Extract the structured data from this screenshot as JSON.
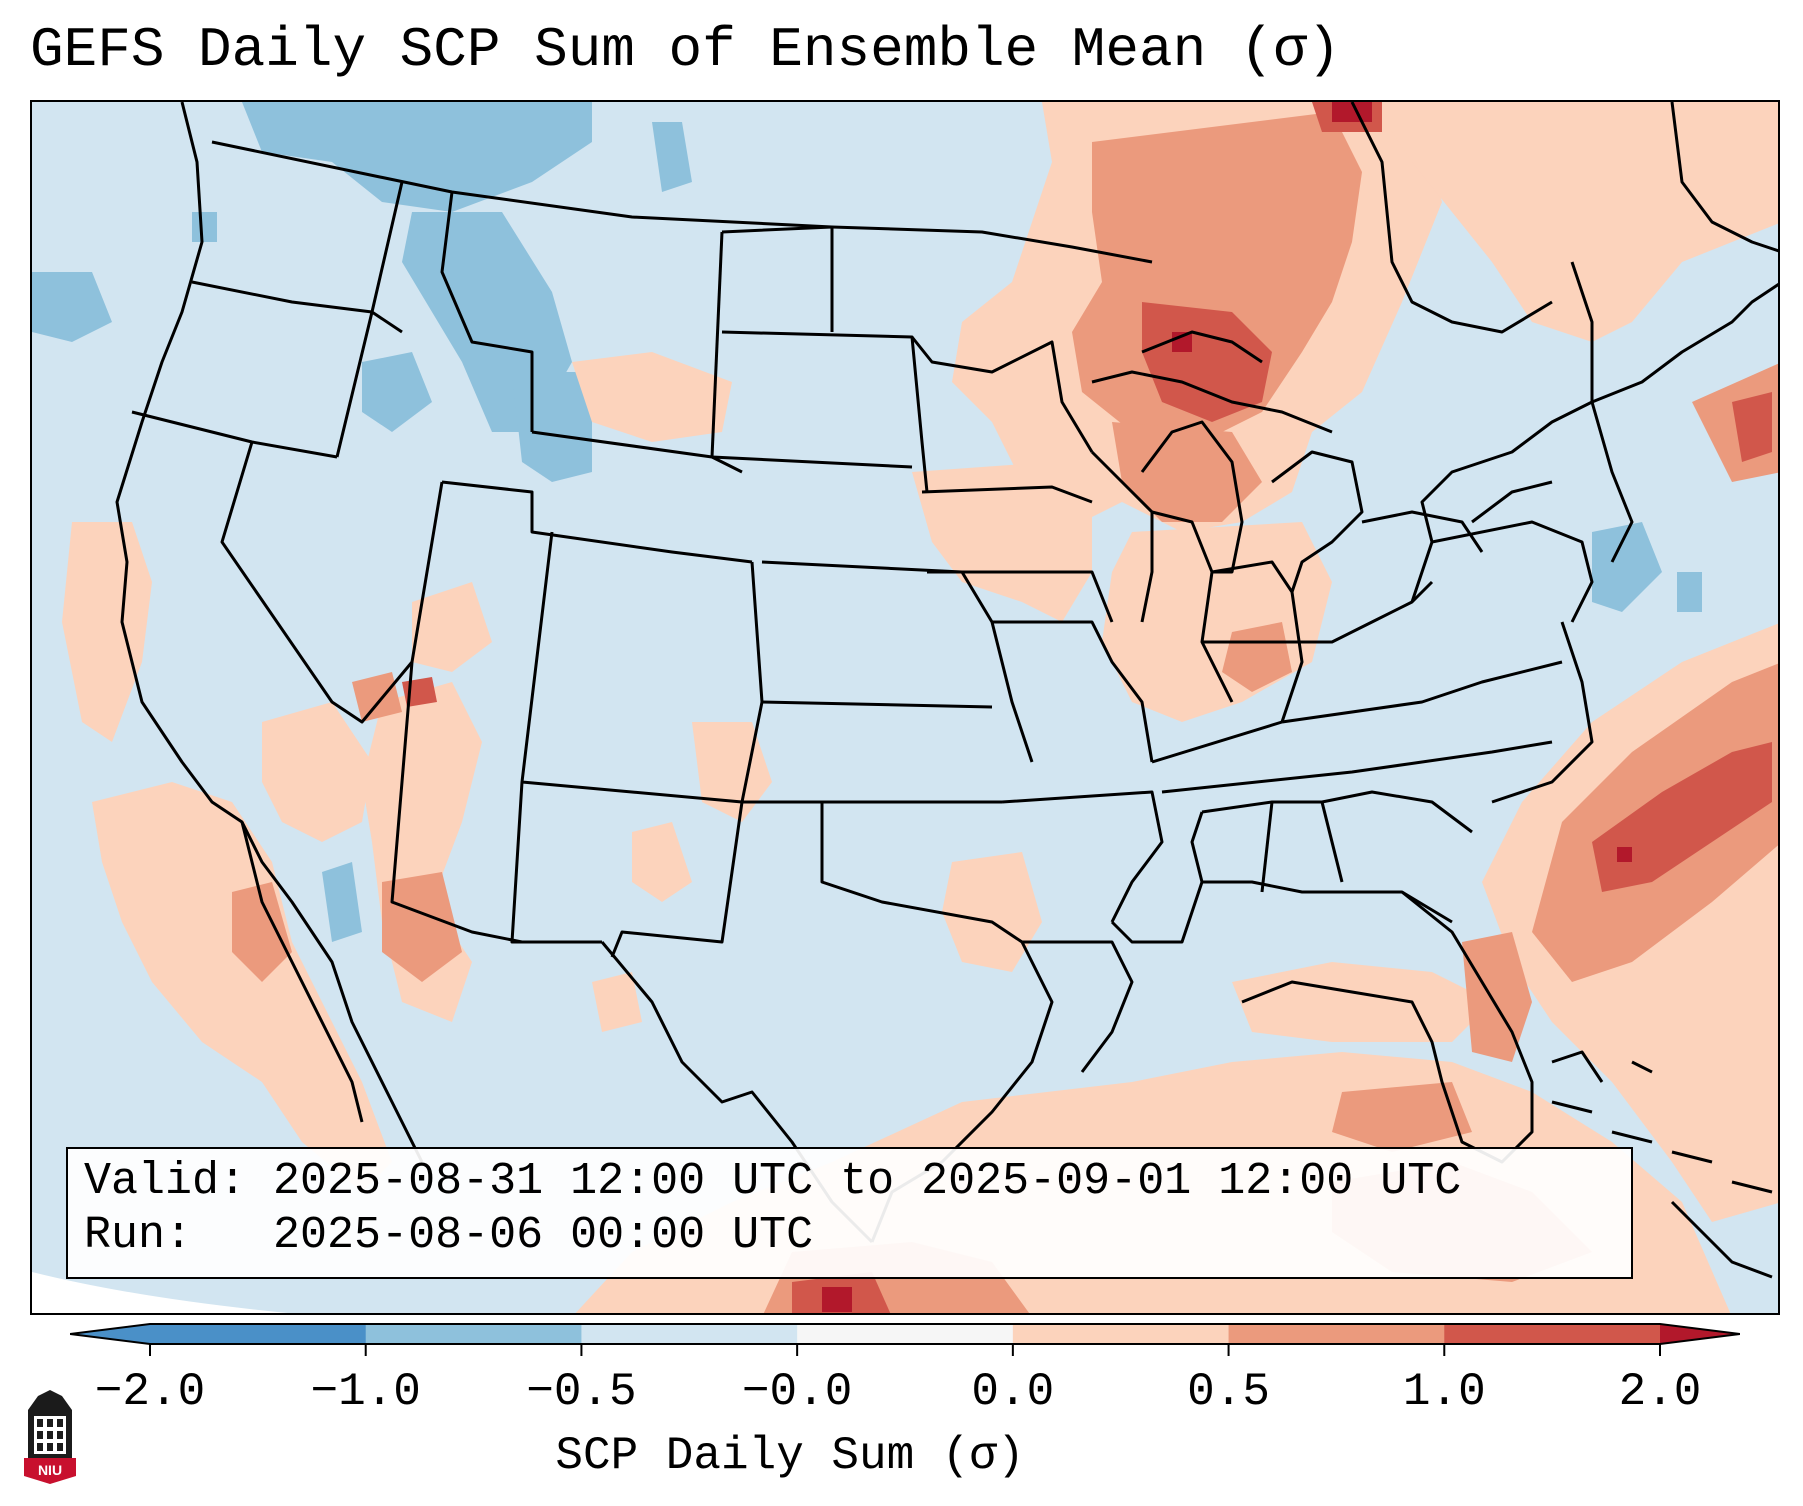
{
  "title": "GEFS Daily SCP Sum of Ensemble Mean (σ)",
  "info": {
    "valid_label": "Valid:",
    "valid_value": "2025-08-31 12:00 UTC to 2025-09-01 12:00 UTC",
    "run_label": "Run:",
    "run_value": "2025-08-06 00:00 UTC"
  },
  "colorbar": {
    "label": "SCP Daily Sum (σ)",
    "ticks": [
      "−2.0",
      "−1.0",
      "−0.5",
      "−0.0",
      "0.0",
      "0.5",
      "1.0",
      "2.0"
    ],
    "colors": [
      "#4a90c8",
      "#8ec1dc",
      "#d2e5f1",
      "#f6f6f6",
      "#fcd3bc",
      "#eb9a7d",
      "#d1574b",
      "#b2182b"
    ]
  },
  "map": {
    "region": "Contiguous United States",
    "background_color": "#d2e5f1",
    "positive_anomaly_colors": [
      "#fcd3bc",
      "#eb9a7d",
      "#d1574b",
      "#b2182b"
    ],
    "negative_anomaly_colors": [
      "#8ec1dc",
      "#4a90c8"
    ]
  },
  "logo": {
    "icon": "niu-tower-icon",
    "text": "NIU"
  }
}
